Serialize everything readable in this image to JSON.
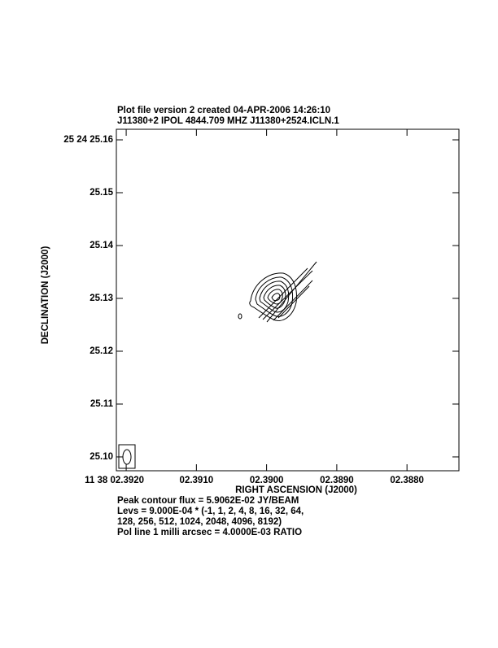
{
  "chart_data": {
    "type": "contour",
    "title_lines": [
      "Plot file version 2  created 04-APR-2006 14:26:10",
      "J11380+2  IPOL  4844.709 MHZ  J11380+2524.ICLN.1"
    ],
    "xlabel": "RIGHT ASCENSION (J2000)",
    "ylabel": "DECLINATION (J2000)",
    "xlim": [
      2.39214,
      2.38726
    ],
    "ylim": [
      25.09738,
      25.162
    ],
    "xticks": [
      {
        "value": 2.392,
        "label": "11 38 02.3920"
      },
      {
        "value": 2.391,
        "label": "02.3910"
      },
      {
        "value": 2.39,
        "label": "02.3900"
      },
      {
        "value": 2.389,
        "label": "02.3890"
      },
      {
        "value": 2.388,
        "label": "02.3880"
      }
    ],
    "yticks": [
      {
        "value": 25.16,
        "label": "25 24 25.16"
      },
      {
        "value": 25.15,
        "label": "25.15"
      },
      {
        "value": 25.14,
        "label": "25.14"
      },
      {
        "value": 25.13,
        "label": "25.13"
      },
      {
        "value": 25.12,
        "label": "25.12"
      },
      {
        "value": 25.11,
        "label": "25.11"
      },
      {
        "value": 25.1,
        "label": "25.10"
      }
    ],
    "annotations": [
      "Peak contour flux =  5.9062E-02 JY/BEAM",
      "Levs = 9.000E-04 * (-1, 1, 2, 4, 8, 16, 32, 64,",
      "128, 256, 512, 1024, 2048, 4096, 8192)",
      "Pol line 1 milli arcsec =  4.0000E-03 RATIO"
    ]
  }
}
